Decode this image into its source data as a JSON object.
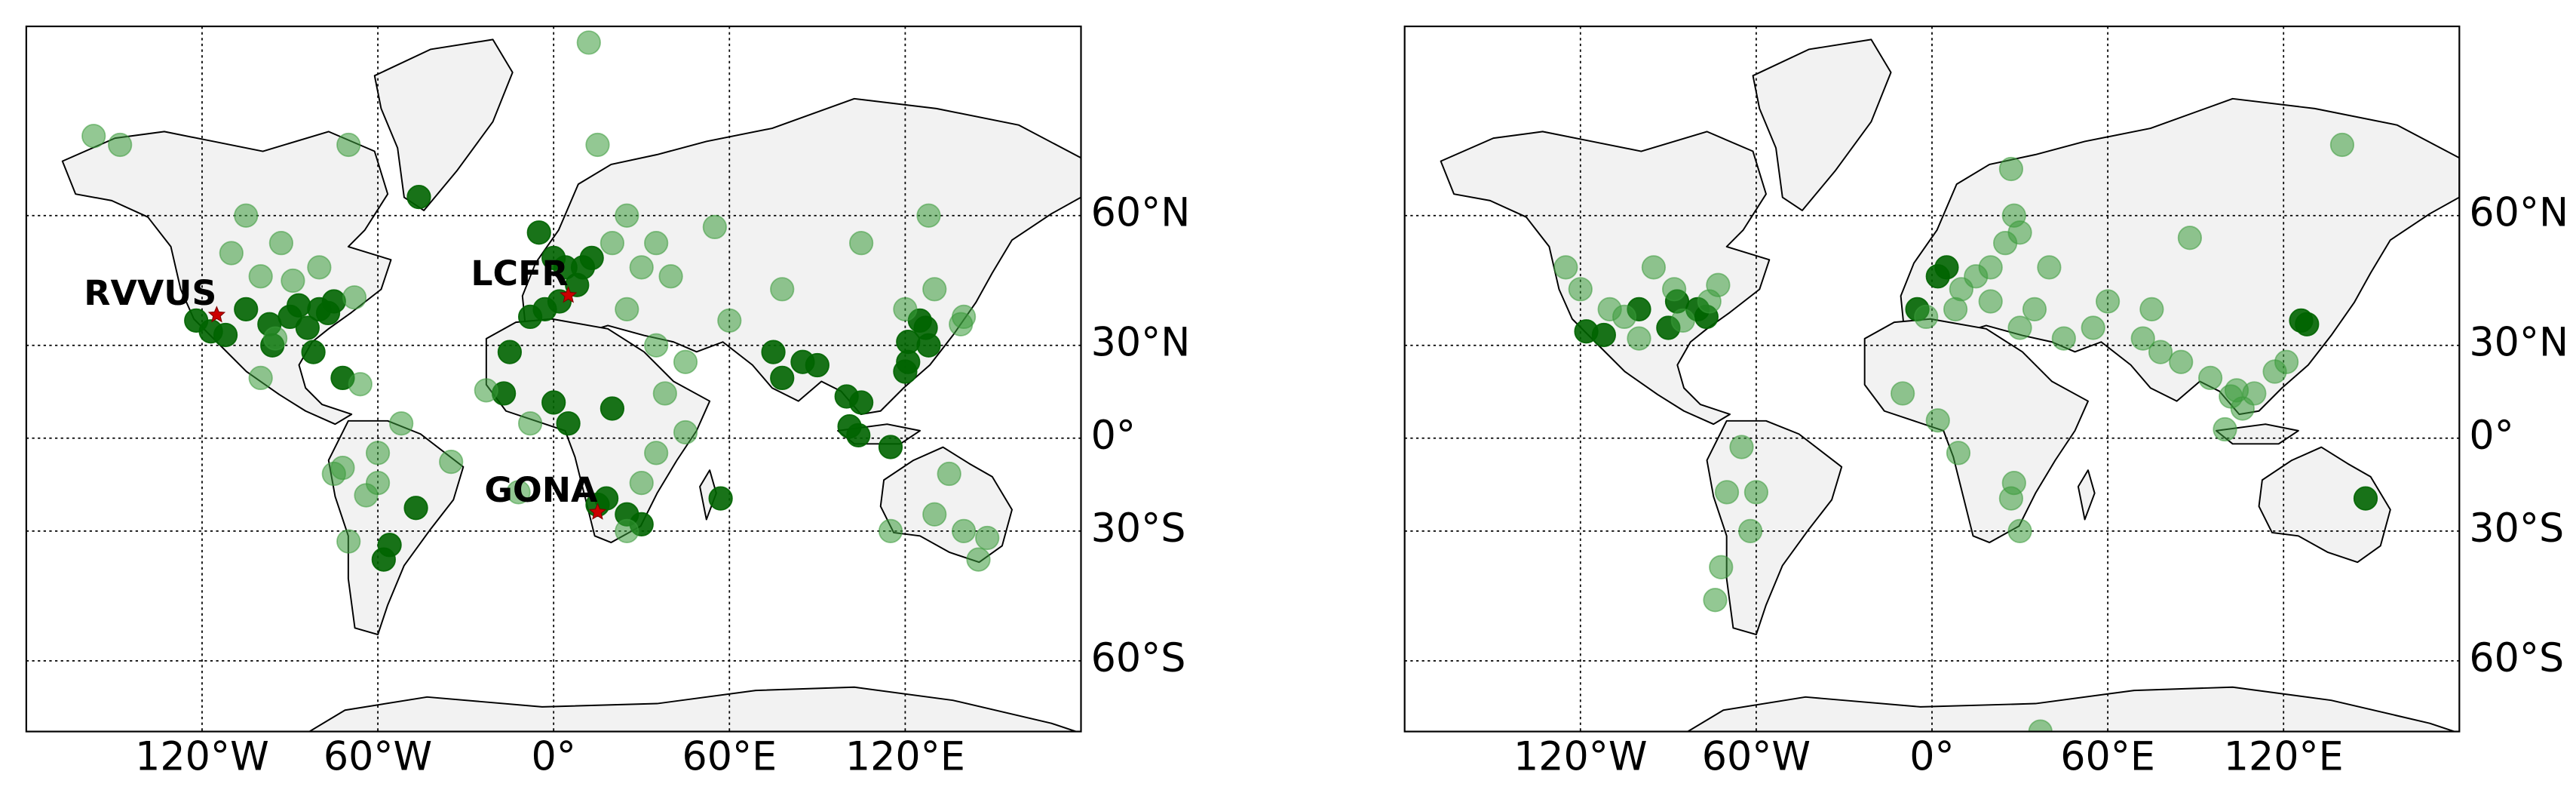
{
  "chart_data": [
    {
      "type": "scatter",
      "projection": "mercator",
      "grid": true,
      "xlim": [
        -180,
        180
      ],
      "ylim": [
        -70,
        80
      ],
      "xticks": [
        {
          "value": -120,
          "label": "120°W"
        },
        {
          "value": -60,
          "label": "60°W"
        },
        {
          "value": 0,
          "label": "0°"
        },
        {
          "value": 60,
          "label": "60°E"
        },
        {
          "value": 120,
          "label": "120°E"
        }
      ],
      "yticks": [
        {
          "value": -60,
          "label": "60°S"
        },
        {
          "value": -30,
          "label": "30°S"
        },
        {
          "value": 0,
          "label": "0°"
        },
        {
          "value": 30,
          "label": "30°N"
        },
        {
          "value": 60,
          "label": "60°N"
        }
      ],
      "series": [
        {
          "color": "#006400",
          "opacity": 0.9,
          "x": [
            -117,
            -122,
            -112,
            -105,
            -97,
            -90,
            -84,
            -80,
            -77,
            -75,
            -87,
            -96,
            -82,
            -72,
            -56,
            -58,
            -47,
            -46,
            -5,
            0,
            4,
            10,
            13,
            2,
            -3,
            8,
            -8,
            -15,
            -17,
            0,
            5,
            20,
            15,
            18,
            25,
            30,
            57,
            75,
            78,
            85,
            90,
            100,
            101,
            104,
            105,
            115,
            120,
            121,
            125,
            127,
            128,
            121
          ],
          "y": [
            34,
            37,
            33,
            40,
            36,
            38,
            35,
            40,
            39,
            42,
            41,
            30,
            28,
            20,
            -34,
            -38,
            -23,
            63,
            57,
            52,
            50,
            50,
            52,
            42,
            40,
            46,
            38,
            28,
            15,
            12,
            5,
            10,
            -22,
            -20,
            -25,
            -28,
            -20,
            28,
            20,
            25,
            24,
            14,
            4,
            1,
            12,
            -3,
            22,
            31,
            37,
            35,
            30,
            25
          ]
        },
        {
          "color": "#3a9a3a",
          "opacity": 0.55,
          "x": [
            -157,
            -148,
            -105,
            -110,
            -93,
            -100,
            -89,
            -80,
            -70,
            -68,
            -95,
            -100,
            -72,
            -60,
            -64,
            -75,
            -60,
            -66,
            -52,
            -70,
            -23,
            -8,
            12,
            15,
            25,
            20,
            35,
            30,
            40,
            25,
            35,
            45,
            55,
            60,
            78,
            105,
            128,
            120,
            130,
            139,
            140,
            -35,
            35,
            25,
            30,
            115,
            140,
            145,
            148,
            135,
            130,
            38,
            45,
            -12
          ],
          "y": [
            71,
            70,
            60,
            53,
            55,
            48,
            47,
            50,
            70,
            43,
            32,
            20,
            -10,
            -5,
            -19,
            -12,
            -15,
            18,
            5,
            -33,
            16,
            5,
            79,
            70,
            60,
            55,
            55,
            50,
            48,
            40,
            30,
            25,
            58,
            37,
            45,
            55,
            60,
            40,
            45,
            36,
            38,
            -8,
            -5,
            -30,
            -15,
            -30,
            -30,
            -38,
            -32,
            -12,
            -25,
            15,
            2,
            -18
          ]
        }
      ],
      "annotations": [
        {
          "text": "RVVUS",
          "x": -115,
          "y": 38.5
        },
        {
          "text": "LCFR",
          "x": 5,
          "y": 43.5
        },
        {
          "text": "GONA",
          "x": 15,
          "y": -24.3
        }
      ]
    },
    {
      "type": "scatter",
      "projection": "mercator",
      "grid": true,
      "xlim": [
        -180,
        180
      ],
      "ylim": [
        -70,
        80
      ],
      "xticks": [
        {
          "value": -120,
          "label": "120°W"
        },
        {
          "value": -60,
          "label": "60°W"
        },
        {
          "value": 0,
          "label": "0°"
        },
        {
          "value": 60,
          "label": "60°E"
        },
        {
          "value": 120,
          "label": "120°E"
        }
      ],
      "yticks": [
        {
          "value": -60,
          "label": "60°S"
        },
        {
          "value": -30,
          "label": "30°S"
        },
        {
          "value": 0,
          "label": "0°"
        },
        {
          "value": 30,
          "label": "30°N"
        },
        {
          "value": 60,
          "label": "60°N"
        }
      ],
      "series": [
        {
          "color": "#006400",
          "opacity": 0.9,
          "x": [
            -118,
            -112,
            -100,
            -90,
            -87,
            -77,
            -80,
            2,
            5,
            -5,
            126,
            128,
            148
          ],
          "y": [
            34,
            33,
            40,
            35,
            42,
            38,
            40,
            48,
            50,
            40,
            37,
            36,
            -20
          ]
        },
        {
          "color": "#3a9a3a",
          "opacity": 0.55,
          "x": [
            -125,
            -120,
            -110,
            -100,
            -95,
            -85,
            -76,
            -73,
            -88,
            -105,
            -65,
            -70,
            -72,
            -74,
            -62,
            -60,
            -10,
            8,
            10,
            15,
            20,
            25,
            28,
            27,
            30,
            40,
            20,
            30,
            35,
            45,
            55,
            60,
            75,
            88,
            72,
            78,
            85,
            95,
            102,
            106,
            104,
            100,
            110,
            117,
            121,
            140,
            28,
            27,
            30,
            37,
            9,
            2,
            -2
          ],
          "y": [
            50,
            45,
            40,
            32,
            50,
            37,
            42,
            46,
            45,
            38,
            -3,
            -18,
            -40,
            -48,
            -30,
            -18,
            15,
            40,
            45,
            48,
            50,
            55,
            60,
            67,
            57,
            50,
            42,
            35,
            40,
            32,
            35,
            42,
            40,
            56,
            32,
            28,
            25,
            20,
            14,
            10,
            16,
            3,
            15,
            22,
            25,
            70,
            -15,
            -20,
            -30,
            -70,
            -5,
            6,
            38
          ]
        }
      ]
    }
  ]
}
